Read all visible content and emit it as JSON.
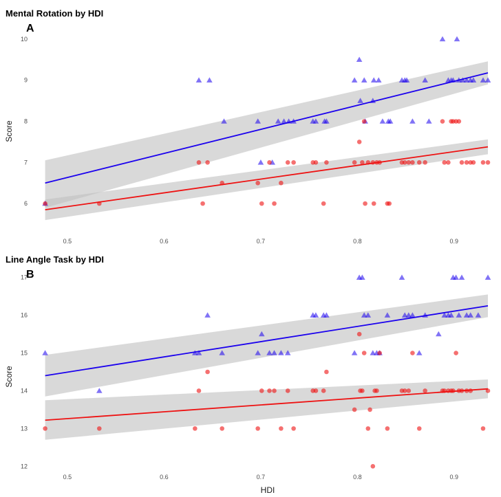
{
  "colors": {
    "group1": "#1a00ee",
    "group2": "#ee1111",
    "ribbon": "#bfbfbf"
  },
  "chart_data": [
    {
      "type": "scatter",
      "title": "Mental Rotation by HDI",
      "panel_label": "A",
      "xlabel": "",
      "ylabel": "Score",
      "xlim": [
        0.473,
        0.94
      ],
      "ylim": [
        5.3,
        10.4
      ],
      "x_ticks": [
        "0.5",
        "0.6",
        "0.7",
        "0.8",
        "0.9"
      ],
      "x_tick_values": [
        0.5,
        0.6,
        0.7,
        0.8,
        0.9
      ],
      "y_ticks": [
        "6",
        "7",
        "8",
        "9",
        "10"
      ],
      "y_tick_values": [
        6,
        7,
        8,
        9,
        10
      ],
      "grid": false,
      "series": [
        {
          "marker": "triangle",
          "color": "#1a00ee",
          "points": [
            [
              0.477,
              6.0
            ],
            [
              0.636,
              9.0
            ],
            [
              0.647,
              9.0
            ],
            [
              0.662,
              8.0
            ],
            [
              0.697,
              8.0
            ],
            [
              0.7,
              7.0
            ],
            [
              0.712,
              7.0
            ],
            [
              0.718,
              8.0
            ],
            [
              0.724,
              8.0
            ],
            [
              0.729,
              8.0
            ],
            [
              0.734,
              8.0
            ],
            [
              0.754,
              8.0
            ],
            [
              0.757,
              8.0
            ],
            [
              0.766,
              8.0
            ],
            [
              0.768,
              8.0
            ],
            [
              0.797,
              9.0
            ],
            [
              0.802,
              9.5
            ],
            [
              0.803,
              8.5
            ],
            [
              0.807,
              9.0
            ],
            [
              0.808,
              8.0
            ],
            [
              0.816,
              8.5
            ],
            [
              0.817,
              9.0
            ],
            [
              0.822,
              9.0
            ],
            [
              0.826,
              8.0
            ],
            [
              0.832,
              8.0
            ],
            [
              0.834,
              8.0
            ],
            [
              0.846,
              9.0
            ],
            [
              0.849,
              9.0
            ],
            [
              0.851,
              9.0
            ],
            [
              0.857,
              8.0
            ],
            [
              0.87,
              9.0
            ],
            [
              0.874,
              8.0
            ],
            [
              0.888,
              10.0
            ],
            [
              0.894,
              9.0
            ],
            [
              0.897,
              9.0
            ],
            [
              0.899,
              9.0
            ],
            [
              0.903,
              10.0
            ],
            [
              0.905,
              9.0
            ],
            [
              0.909,
              9.0
            ],
            [
              0.913,
              9.0
            ],
            [
              0.917,
              9.0
            ],
            [
              0.92,
              9.0
            ],
            [
              0.93,
              9.0
            ],
            [
              0.935,
              9.0
            ]
          ],
          "fit": {
            "x0": 0.477,
            "y0": 6.5,
            "x1": 0.935,
            "y1": 9.18,
            "lo0": 5.9,
            "hi0": 7.05,
            "lo1": 8.9,
            "hi1": 9.46
          }
        },
        {
          "marker": "circle",
          "color": "#ee1111",
          "points": [
            [
              0.477,
              6.0
            ],
            [
              0.533,
              6.0
            ],
            [
              0.636,
              7.0
            ],
            [
              0.64,
              6.0
            ],
            [
              0.645,
              7.0
            ],
            [
              0.66,
              6.5
            ],
            [
              0.697,
              6.5
            ],
            [
              0.701,
              6.0
            ],
            [
              0.709,
              7.0
            ],
            [
              0.714,
              6.0
            ],
            [
              0.721,
              6.5
            ],
            [
              0.728,
              7.0
            ],
            [
              0.734,
              7.0
            ],
            [
              0.754,
              7.0
            ],
            [
              0.757,
              7.0
            ],
            [
              0.765,
              6.0
            ],
            [
              0.768,
              7.0
            ],
            [
              0.797,
              7.0
            ],
            [
              0.802,
              7.5
            ],
            [
              0.805,
              7.0
            ],
            [
              0.807,
              8.0
            ],
            [
              0.808,
              6.0
            ],
            [
              0.811,
              7.0
            ],
            [
              0.816,
              7.0
            ],
            [
              0.817,
              6.0
            ],
            [
              0.82,
              7.0
            ],
            [
              0.823,
              7.0
            ],
            [
              0.831,
              6.0
            ],
            [
              0.833,
              6.0
            ],
            [
              0.846,
              7.0
            ],
            [
              0.849,
              7.0
            ],
            [
              0.853,
              7.0
            ],
            [
              0.857,
              7.0
            ],
            [
              0.864,
              7.0
            ],
            [
              0.87,
              7.0
            ],
            [
              0.888,
              8.0
            ],
            [
              0.89,
              7.0
            ],
            [
              0.894,
              7.0
            ],
            [
              0.897,
              8.0
            ],
            [
              0.899,
              8.0
            ],
            [
              0.902,
              8.0
            ],
            [
              0.905,
              8.0
            ],
            [
              0.908,
              7.0
            ],
            [
              0.913,
              7.0
            ],
            [
              0.917,
              7.0
            ],
            [
              0.92,
              7.0
            ],
            [
              0.93,
              7.0
            ],
            [
              0.935,
              7.0
            ]
          ],
          "fit": {
            "x0": 0.477,
            "y0": 5.85,
            "x1": 0.935,
            "y1": 7.38,
            "lo0": 5.6,
            "hi0": 6.1,
            "lo1": 7.2,
            "hi1": 7.56
          }
        }
      ]
    },
    {
      "type": "scatter",
      "title": "Line Angle Task by HDI",
      "panel_label": "B",
      "xlabel": "HDI",
      "ylabel": "Score",
      "xlim": [
        0.473,
        0.94
      ],
      "ylim": [
        11.75,
        17.25
      ],
      "x_ticks": [
        "0.5",
        "0.6",
        "0.7",
        "0.8",
        "0.9"
      ],
      "x_tick_values": [
        0.5,
        0.6,
        0.7,
        0.8,
        0.9
      ],
      "y_ticks": [
        "12",
        "13",
        "14",
        "15",
        "16",
        "17"
      ],
      "y_tick_values": [
        12,
        13,
        14,
        15,
        16,
        17
      ],
      "grid": false,
      "series": [
        {
          "marker": "triangle",
          "color": "#1a00ee",
          "points": [
            [
              0.477,
              15.0
            ],
            [
              0.533,
              14.0
            ],
            [
              0.632,
              15.0
            ],
            [
              0.636,
              15.0
            ],
            [
              0.645,
              16.0
            ],
            [
              0.66,
              15.0
            ],
            [
              0.697,
              15.0
            ],
            [
              0.701,
              15.5
            ],
            [
              0.709,
              15.0
            ],
            [
              0.714,
              15.0
            ],
            [
              0.721,
              15.0
            ],
            [
              0.728,
              15.0
            ],
            [
              0.754,
              16.0
            ],
            [
              0.757,
              16.0
            ],
            [
              0.765,
              16.0
            ],
            [
              0.768,
              16.0
            ],
            [
              0.797,
              15.0
            ],
            [
              0.802,
              17.0
            ],
            [
              0.805,
              17.0
            ],
            [
              0.807,
              16.0
            ],
            [
              0.811,
              16.0
            ],
            [
              0.816,
              15.0
            ],
            [
              0.82,
              15.0
            ],
            [
              0.823,
              15.0
            ],
            [
              0.831,
              16.0
            ],
            [
              0.846,
              17.0
            ],
            [
              0.849,
              16.0
            ],
            [
              0.853,
              16.0
            ],
            [
              0.857,
              16.0
            ],
            [
              0.864,
              15.0
            ],
            [
              0.87,
              16.0
            ],
            [
              0.884,
              15.5
            ],
            [
              0.89,
              16.0
            ],
            [
              0.894,
              16.0
            ],
            [
              0.897,
              16.0
            ],
            [
              0.899,
              17.0
            ],
            [
              0.902,
              17.0
            ],
            [
              0.905,
              16.0
            ],
            [
              0.908,
              17.0
            ],
            [
              0.913,
              16.0
            ],
            [
              0.917,
              16.0
            ],
            [
              0.925,
              16.0
            ],
            [
              0.935,
              17.0
            ]
          ],
          "fit": {
            "x0": 0.477,
            "y0": 14.4,
            "x1": 0.935,
            "y1": 16.25,
            "lo0": 13.85,
            "hi0": 14.95,
            "lo1": 15.95,
            "hi1": 16.55
          }
        },
        {
          "marker": "circle",
          "color": "#ee1111",
          "points": [
            [
              0.477,
              13.0
            ],
            [
              0.533,
              13.0
            ],
            [
              0.632,
              13.0
            ],
            [
              0.636,
              14.0
            ],
            [
              0.645,
              14.5
            ],
            [
              0.66,
              13.0
            ],
            [
              0.697,
              13.0
            ],
            [
              0.701,
              14.0
            ],
            [
              0.709,
              14.0
            ],
            [
              0.714,
              14.0
            ],
            [
              0.721,
              13.0
            ],
            [
              0.728,
              14.0
            ],
            [
              0.734,
              13.0
            ],
            [
              0.754,
              14.0
            ],
            [
              0.757,
              14.0
            ],
            [
              0.765,
              14.0
            ],
            [
              0.768,
              14.5
            ],
            [
              0.797,
              13.5
            ],
            [
              0.802,
              15.5
            ],
            [
              0.803,
              14.0
            ],
            [
              0.805,
              14.0
            ],
            [
              0.807,
              15.0
            ],
            [
              0.811,
              13.0
            ],
            [
              0.813,
              13.5
            ],
            [
              0.816,
              12.0
            ],
            [
              0.818,
              14.0
            ],
            [
              0.82,
              14.0
            ],
            [
              0.823,
              15.0
            ],
            [
              0.831,
              13.0
            ],
            [
              0.846,
              14.0
            ],
            [
              0.849,
              14.0
            ],
            [
              0.853,
              14.0
            ],
            [
              0.857,
              15.0
            ],
            [
              0.864,
              13.0
            ],
            [
              0.87,
              14.0
            ],
            [
              0.888,
              14.0
            ],
            [
              0.89,
              14.0
            ],
            [
              0.894,
              14.0
            ],
            [
              0.897,
              14.0
            ],
            [
              0.899,
              14.0
            ],
            [
              0.902,
              15.0
            ],
            [
              0.905,
              14.0
            ],
            [
              0.908,
              14.0
            ],
            [
              0.913,
              14.0
            ],
            [
              0.917,
              14.0
            ],
            [
              0.93,
              13.0
            ],
            [
              0.935,
              14.0
            ]
          ],
          "fit": {
            "x0": 0.477,
            "y0": 13.22,
            "x1": 0.935,
            "y1": 14.05,
            "lo0": 12.7,
            "hi0": 13.75,
            "lo1": 13.8,
            "hi1": 14.3
          }
        }
      ]
    }
  ]
}
